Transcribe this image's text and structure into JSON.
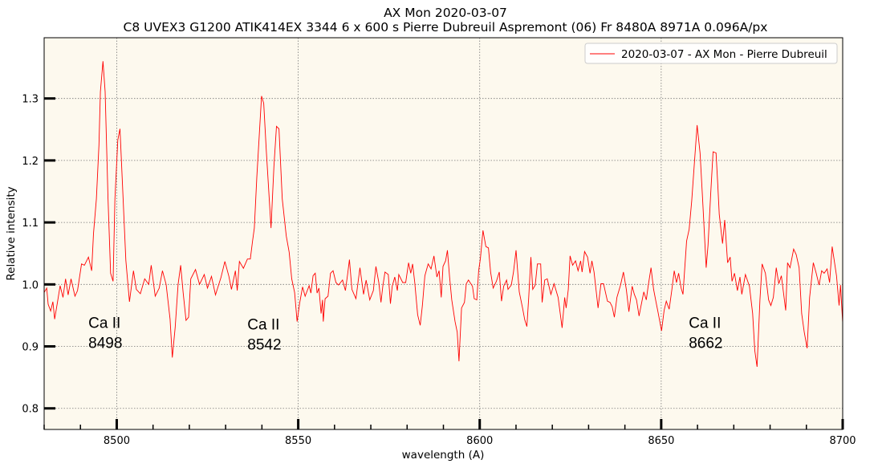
{
  "chart_data": {
    "type": "line",
    "title": "AX Mon 2020-03-07",
    "subtitle": "C8 UVEX3 G1200 ATIK414EX 3344 6 x 600 s Pierre Dubreuil Aspremont (06) Fr 8480A 8971A 0.096A/px",
    "xlabel": "wavelength (A)",
    "ylabel": "Relative intensity",
    "xlim": [
      8480,
      8700
    ],
    "ylim": [
      0.766,
      1.398
    ],
    "xticks": [
      8500,
      8550,
      8600,
      8650,
      8700
    ],
    "xtick_labels": [
      "8500",
      "8550",
      "8600",
      "8650",
      "8700"
    ],
    "yticks": [
      0.8,
      0.9,
      1.0,
      1.1,
      1.2,
      1.3
    ],
    "ytick_labels": [
      "0.8",
      "0.9",
      "1.0",
      "1.1",
      "1.2",
      "1.3"
    ],
    "grid": true,
    "background": "#fdf9ee",
    "legend": {
      "placement": "top-right",
      "entries": [
        "2020-03-07 - AX Mon - Pierre Dubreuil"
      ]
    },
    "annotations": [
      {
        "line1": "Ca II",
        "line2": "8498",
        "x": 8492.2,
        "y": 0.93
      },
      {
        "line1": "Ca II",
        "line2": "8542",
        "x": 8536.0,
        "y": 0.927
      },
      {
        "line1": "Ca II",
        "line2": "8662",
        "x": 8657.6,
        "y": 0.93
      }
    ],
    "series": [
      {
        "name": "2020-03-07 - AX Mon - Pierre Dubreuil",
        "color": "#ff0000",
        "x": [
          8480.0,
          8480.7,
          8481.1,
          8481.8,
          8482.4,
          8482.9,
          8483.7,
          8484.4,
          8485.2,
          8485.9,
          8486.6,
          8487.4,
          8488.5,
          8489.2,
          8490.3,
          8491.1,
          8492.2,
          8493.1,
          8493.6,
          8494.4,
          8495.1,
          8495.5,
          8496.2,
          8496.8,
          8497.6,
          8498.3,
          8499.0,
          8499.5,
          8500.3,
          8500.9,
          8501.5,
          8502.5,
          8503.5,
          8504.6,
          8505.4,
          8506.5,
          8507.7,
          8508.8,
          8509.5,
          8510.6,
          8511.7,
          8512.6,
          8513.6,
          8514.7,
          8515.3,
          8516.1,
          8516.9,
          8517.6,
          8518.3,
          8519.1,
          8519.8,
          8520.4,
          8521.7,
          8522.8,
          8524.1,
          8525.0,
          8526.1,
          8527.2,
          8528.7,
          8529.8,
          8530.9,
          8531.6,
          8532.7,
          8533.2,
          8533.8,
          8534.9,
          8536.0,
          8536.8,
          8537.4,
          8537.9,
          8538.6,
          8539.9,
          8540.5,
          8541.2,
          8542.5,
          8543.3,
          8544.0,
          8544.7,
          8545.6,
          8546.7,
          8547.5,
          8548.2,
          8549.0,
          8549.7,
          8550.4,
          8551.2,
          8551.9,
          8553.0,
          8553.5,
          8554.1,
          8554.7,
          8555.2,
          8555.7,
          8556.3,
          8556.7,
          8556.9,
          8557.4,
          8558.2,
          8558.9,
          8559.6,
          8560.4,
          8561.1,
          8562.2,
          8563.0,
          8563.6,
          8564.1,
          8564.8,
          8565.9,
          8567.0,
          8568.0,
          8568.7,
          8569.7,
          8570.7,
          8571.4,
          8572.2,
          8572.8,
          8573.3,
          8573.9,
          8574.8,
          8575.4,
          8575.9,
          8576.6,
          8577.3,
          8577.7,
          8578.8,
          8579.6,
          8580.4,
          8581.0,
          8581.5,
          8582.1,
          8582.9,
          8583.6,
          8584.2,
          8584.9,
          8585.8,
          8586.6,
          8587.4,
          8588.2,
          8588.8,
          8589.4,
          8589.9,
          8590.6,
          8591.1,
          8591.7,
          8592.3,
          8593.2,
          8593.8,
          8594.3,
          8595.0,
          8595.8,
          8596.3,
          8596.9,
          8598.0,
          8598.5,
          8599.2,
          8599.7,
          8600.2,
          8600.9,
          8601.7,
          8602.4,
          8603.0,
          8603.7,
          8604.6,
          8605.4,
          8606.0,
          8606.6,
          8607.4,
          8607.8,
          8608.7,
          8609.3,
          8610.0,
          8610.9,
          8611.8,
          8612.4,
          8613.0,
          8613.5,
          8614.1,
          8614.6,
          8615.3,
          8615.9,
          8616.8,
          8617.2,
          8617.9,
          8618.6,
          8619.6,
          8620.5,
          8621.6,
          8622.7,
          8623.4,
          8623.8,
          8624.4,
          8624.9,
          8625.6,
          8626.4,
          8627.1,
          8627.8,
          8628.2,
          8628.9,
          8629.7,
          8630.4,
          8630.9,
          8631.5,
          8632.6,
          8633.4,
          8634.1,
          8635.2,
          8635.9,
          8636.5,
          8637.1,
          8637.8,
          8638.8,
          8639.6,
          8640.4,
          8641.1,
          8642.0,
          8642.6,
          8643.2,
          8643.9,
          8644.4,
          8645.2,
          8645.9,
          8646.4,
          8647.2,
          8647.9,
          8648.6,
          8649.1,
          8650.1,
          8650.8,
          8651.4,
          8652.2,
          8652.9,
          8653.6,
          8654.2,
          8654.8,
          8655.5,
          8656.0,
          8657.0,
          8657.7,
          8658.4,
          8659.2,
          8659.9,
          8660.7,
          8661.4,
          8662.4,
          8662.9,
          8663.6,
          8664.3,
          8665.1,
          8665.6,
          8666.0,
          8666.9,
          8667.5,
          8668.3,
          8669.0,
          8669.5,
          8670.2,
          8671.0,
          8671.7,
          8672.2,
          8673.2,
          8674.3,
          8675.2,
          8675.8,
          8676.4,
          8677.2,
          8677.8,
          8678.7,
          8679.6,
          8680.2,
          8680.9,
          8681.7,
          8682.4,
          8683.1,
          8684.3,
          8684.8,
          8685.5,
          8686.5,
          8687.2,
          8688.0,
          8688.7,
          8689.4,
          8690.2,
          8690.9,
          8691.9,
          8692.7,
          8693.5,
          8694.2,
          8694.9,
          8695.7,
          8696.4,
          8697.1,
          8698.3,
          8699.0,
          8699.4,
          8700.0
        ],
        "y": [
          0.987,
          0.994,
          0.968,
          0.957,
          0.972,
          0.944,
          0.972,
          0.998,
          0.979,
          1.009,
          0.983,
          1.009,
          0.981,
          0.99,
          1.033,
          1.031,
          1.044,
          1.022,
          1.082,
          1.138,
          1.225,
          1.311,
          1.36,
          1.311,
          1.138,
          1.018,
          1.005,
          1.138,
          1.233,
          1.251,
          1.173,
          1.039,
          0.972,
          1.022,
          0.992,
          0.985,
          1.009,
          1.0,
          1.031,
          0.981,
          0.994,
          1.022,
          1.0,
          0.944,
          0.882,
          0.931,
          1.0,
          1.031,
          0.987,
          0.942,
          0.947,
          1.009,
          1.024,
          1.0,
          1.016,
          0.994,
          1.013,
          0.983,
          1.011,
          1.037,
          1.013,
          0.992,
          1.022,
          0.99,
          1.037,
          1.026,
          1.041,
          1.041,
          1.069,
          1.091,
          1.173,
          1.304,
          1.292,
          1.216,
          1.091,
          1.19,
          1.255,
          1.251,
          1.138,
          1.078,
          1.052,
          1.009,
          0.987,
          0.94,
          0.97,
          0.996,
          0.981,
          0.998,
          0.986,
          1.014,
          1.018,
          0.986,
          0.994,
          0.953,
          0.975,
          0.94,
          0.977,
          0.981,
          1.018,
          1.022,
          1.003,
          0.999,
          1.007,
          0.99,
          1.016,
          1.04,
          0.992,
          0.977,
          1.027,
          0.984,
          1.007,
          0.975,
          0.99,
          1.029,
          1.003,
          0.971,
          0.997,
          1.02,
          1.016,
          0.969,
          0.997,
          1.012,
          0.99,
          1.016,
          1.003,
          1.003,
          1.035,
          1.018,
          1.033,
          1.003,
          0.951,
          0.934,
          0.966,
          1.014,
          1.033,
          1.025,
          1.046,
          1.012,
          1.022,
          0.979,
          1.029,
          1.038,
          1.055,
          1.012,
          0.975,
          0.94,
          0.923,
          0.876,
          0.962,
          0.971,
          1.001,
          1.007,
          0.997,
          0.977,
          0.975,
          1.022,
          1.042,
          1.087,
          1.061,
          1.059,
          1.02,
          0.994,
          1.005,
          1.02,
          0.973,
          0.997,
          1.007,
          0.992,
          0.999,
          1.02,
          1.055,
          0.988,
          0.962,
          0.943,
          0.932,
          0.979,
          1.044,
          0.992,
          0.999,
          1.033,
          1.033,
          0.971,
          1.007,
          1.009,
          0.984,
          1.001,
          0.979,
          0.93,
          0.979,
          0.962,
          0.992,
          1.046,
          1.031,
          1.038,
          1.022,
          1.038,
          1.02,
          1.053,
          1.044,
          1.018,
          1.038,
          1.02,
          0.962,
          1.001,
          1.001,
          0.973,
          0.971,
          0.964,
          0.947,
          0.979,
          0.999,
          1.02,
          0.992,
          0.956,
          0.997,
          0.984,
          0.975,
          0.949,
          0.964,
          0.988,
          0.975,
          0.997,
          1.027,
          0.992,
          0.971,
          0.956,
          0.925,
          0.958,
          0.973,
          0.96,
          0.99,
          1.022,
          1.003,
          1.018,
          0.994,
          0.984,
          1.07,
          1.089,
          1.135,
          1.201,
          1.257,
          1.212,
          1.139,
          1.027,
          1.063,
          1.143,
          1.214,
          1.212,
          1.16,
          1.113,
          1.066,
          1.104,
          1.035,
          1.044,
          1.005,
          1.018,
          0.99,
          1.012,
          0.984,
          1.016,
          0.997,
          0.953,
          0.893,
          0.867,
          0.975,
          1.033,
          1.018,
          0.975,
          0.966,
          0.979,
          1.027,
          1.001,
          1.014,
          0.958,
          1.035,
          1.027,
          1.057,
          1.048,
          1.027,
          0.953,
          0.923,
          0.897,
          0.979,
          1.035,
          1.018,
          0.999,
          1.022,
          1.018,
          1.025,
          1.003,
          1.061,
          1.014,
          0.966,
          0.999,
          0.938
        ]
      }
    ]
  }
}
